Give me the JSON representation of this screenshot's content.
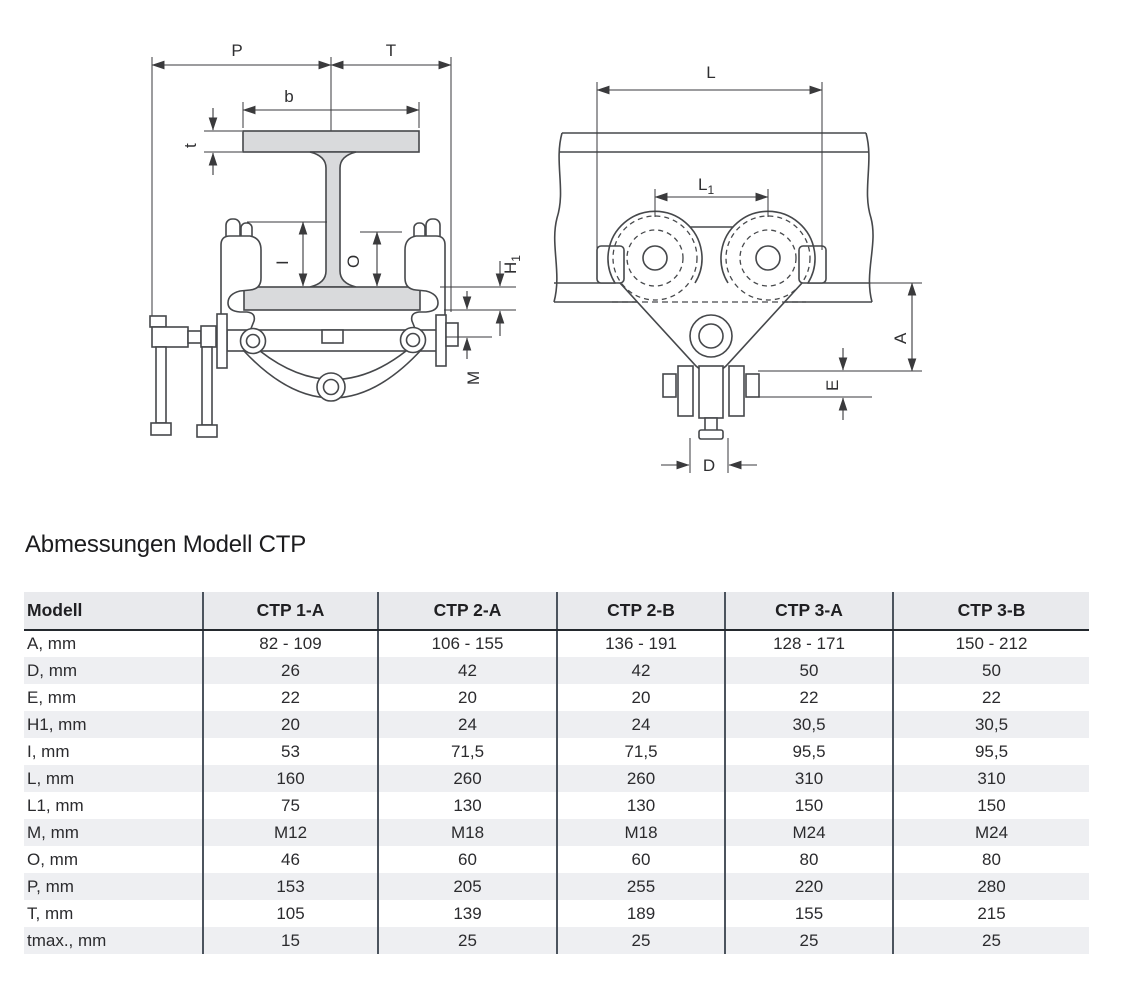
{
  "page": {
    "title": "Abmessungen Modell CTP"
  },
  "drawing_labels": {
    "p": "P",
    "t_width": "T",
    "b": "b",
    "t_thickness": "t",
    "i": "I",
    "o": "O",
    "h1_base": "H",
    "h1_sub": "1",
    "m": "M",
    "l": "L",
    "l1_base": "L",
    "l1_sub": "1",
    "a": "A",
    "e": "E",
    "d": "D"
  },
  "table": {
    "columns": [
      "Modell",
      "CTP 1-A",
      "CTP 2-A",
      "CTP 2-B",
      "CTP 3-A",
      "CTP 3-B"
    ],
    "rows": [
      {
        "label": "A, mm",
        "values": [
          "82 - 109",
          "106 - 155",
          "136 - 191",
          "128 - 171",
          "150 - 212"
        ]
      },
      {
        "label": "D, mm",
        "values": [
          "26",
          "42",
          "42",
          "50",
          "50"
        ]
      },
      {
        "label": "E, mm",
        "values": [
          "22",
          "20",
          "20",
          "22",
          "22"
        ]
      },
      {
        "label": "H1, mm",
        "values": [
          "20",
          "24",
          "24",
          "30,5",
          "30,5"
        ]
      },
      {
        "label": "I, mm",
        "values": [
          "53",
          "71,5",
          "71,5",
          "95,5",
          "95,5"
        ]
      },
      {
        "label": "L, mm",
        "values": [
          "160",
          "260",
          "260",
          "310",
          "310"
        ]
      },
      {
        "label": "L1, mm",
        "values": [
          "75",
          "130",
          "130",
          "150",
          "150"
        ]
      },
      {
        "label": "M, mm",
        "values": [
          "M12",
          "M18",
          "M18",
          "M24",
          "M24"
        ]
      },
      {
        "label": "O, mm",
        "values": [
          "46",
          "60",
          "60",
          "80",
          "80"
        ]
      },
      {
        "label": "P, mm",
        "values": [
          "153",
          "205",
          "255",
          "220",
          "280"
        ]
      },
      {
        "label": "T, mm",
        "values": [
          "105",
          "139",
          "189",
          "155",
          "215"
        ]
      },
      {
        "label": "tmax., mm",
        "values": [
          "15",
          "25",
          "25",
          "25",
          "25"
        ]
      }
    ]
  },
  "colors": {
    "steel_fill": "#d9dadc",
    "outline": "#46484b",
    "dimension_line": "#3a3a3c",
    "header_bg": "#e9eaed",
    "row_alt_bg": "#eeeff2",
    "column_separator": "#4c545e",
    "header_rule": "#23282d"
  }
}
